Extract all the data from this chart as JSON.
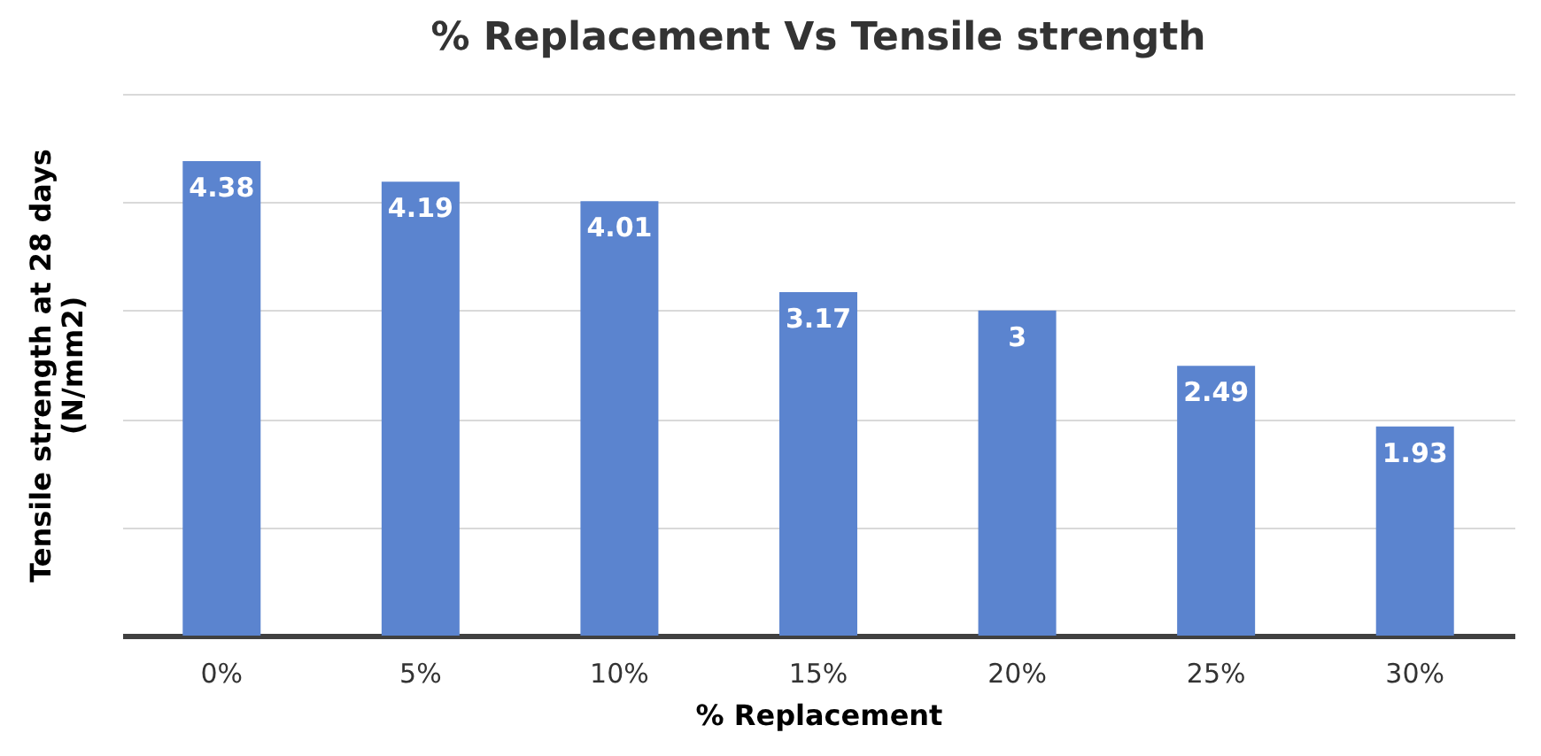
{
  "chart_data": {
    "type": "bar",
    "title": "% Replacement Vs Tensile strength",
    "xlabel": "% Replacement",
    "ylabel": [
      "Tensile strength at 28 days",
      "(N/mm2)"
    ],
    "categories": [
      "0%",
      "5%",
      "10%",
      "15%",
      "20%",
      "25%",
      "30%"
    ],
    "values": [
      4.38,
      4.19,
      4.01,
      3.17,
      3,
      2.49,
      1.93
    ],
    "color": "#5b84cf",
    "ylim": [
      0,
      5
    ],
    "yticks": [
      {
        "value": 0,
        "label": null
      },
      {
        "value": 1,
        "label": null
      },
      {
        "value": 2,
        "label": null
      },
      {
        "value": 3,
        "label": null
      },
      {
        "value": 4,
        "label": null
      },
      {
        "value": 5,
        "label": null
      }
    ],
    "grid": "y",
    "tick_labels": "x",
    "data_labels": true
  }
}
